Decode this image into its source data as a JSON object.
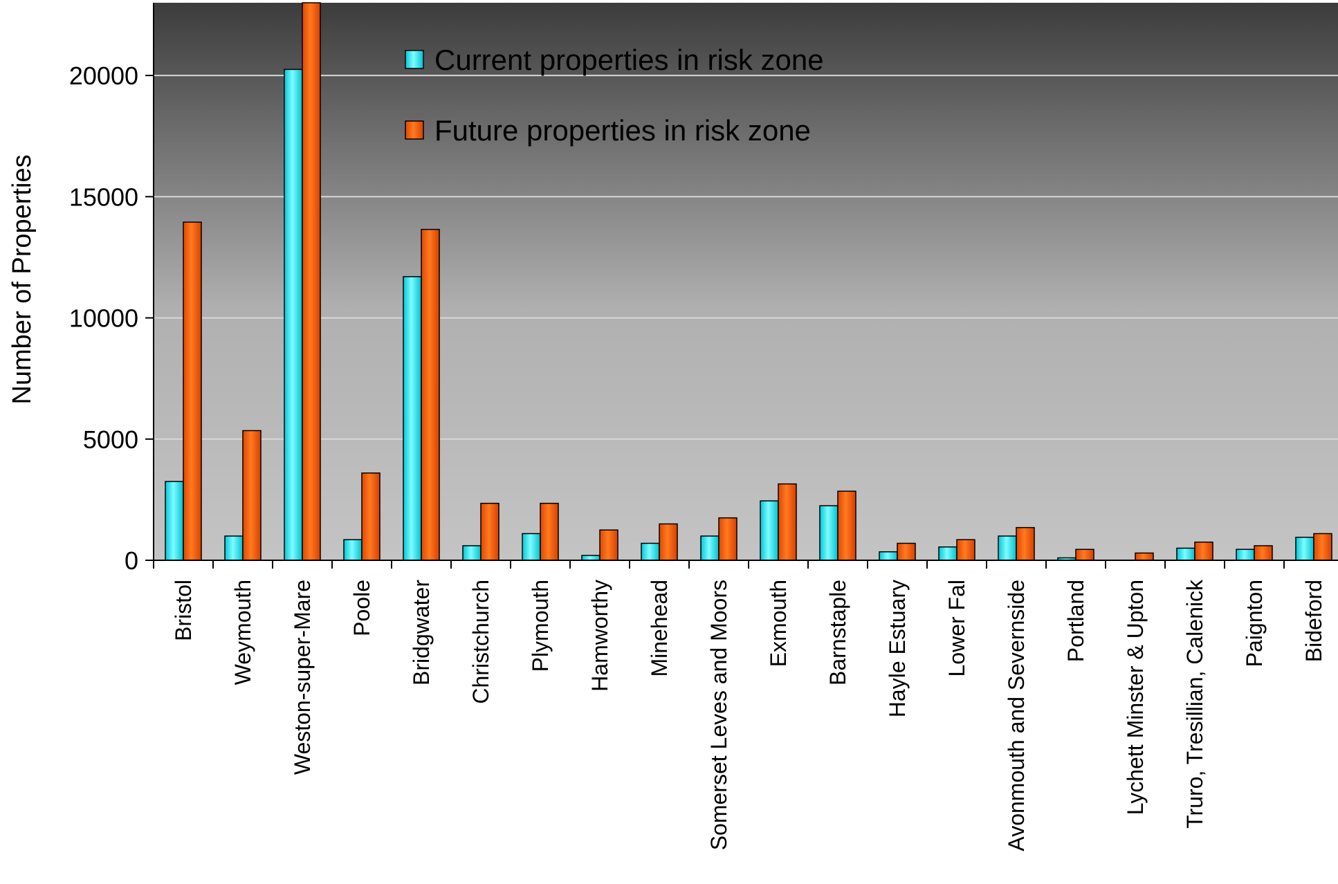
{
  "chart_data": {
    "type": "bar",
    "title": "",
    "xlabel": "",
    "ylabel": "Number of Properties",
    "ylim": [
      0,
      23000
    ],
    "yticks": [
      0,
      5000,
      10000,
      15000,
      20000
    ],
    "grid": true,
    "legend_position": "top-center",
    "categories": [
      "Bristol",
      "Weymouth",
      "Weston-super-Mare",
      "Poole",
      "Bridgwater",
      "Christchurch",
      "Plymouth",
      "Hamworthy",
      "Minehead",
      "Somerset Leves and Moors",
      "Exmouth",
      "Barnstaple",
      "Hayle Estuary",
      "Lower Fal",
      "Avonmouth and Severnside",
      "Portland",
      "Lychett Minster & Upton",
      "Truro, Tresillian, Calenick",
      "Paignton",
      "Bideford"
    ],
    "series": [
      {
        "name": "Current properties in risk zone",
        "color": "#22e0e8",
        "values": [
          3250,
          1000,
          20250,
          850,
          11700,
          600,
          1100,
          200,
          700,
          1000,
          2450,
          2250,
          350,
          550,
          1000,
          100,
          0,
          500,
          450,
          950
        ]
      },
      {
        "name": "Future properties in risk zone",
        "color": "#ff5a00",
        "values": [
          13950,
          5350,
          23100,
          3600,
          13650,
          2350,
          2350,
          1250,
          1500,
          1750,
          3150,
          2850,
          700,
          850,
          1350,
          450,
          300,
          750,
          600,
          1100
        ]
      }
    ]
  }
}
